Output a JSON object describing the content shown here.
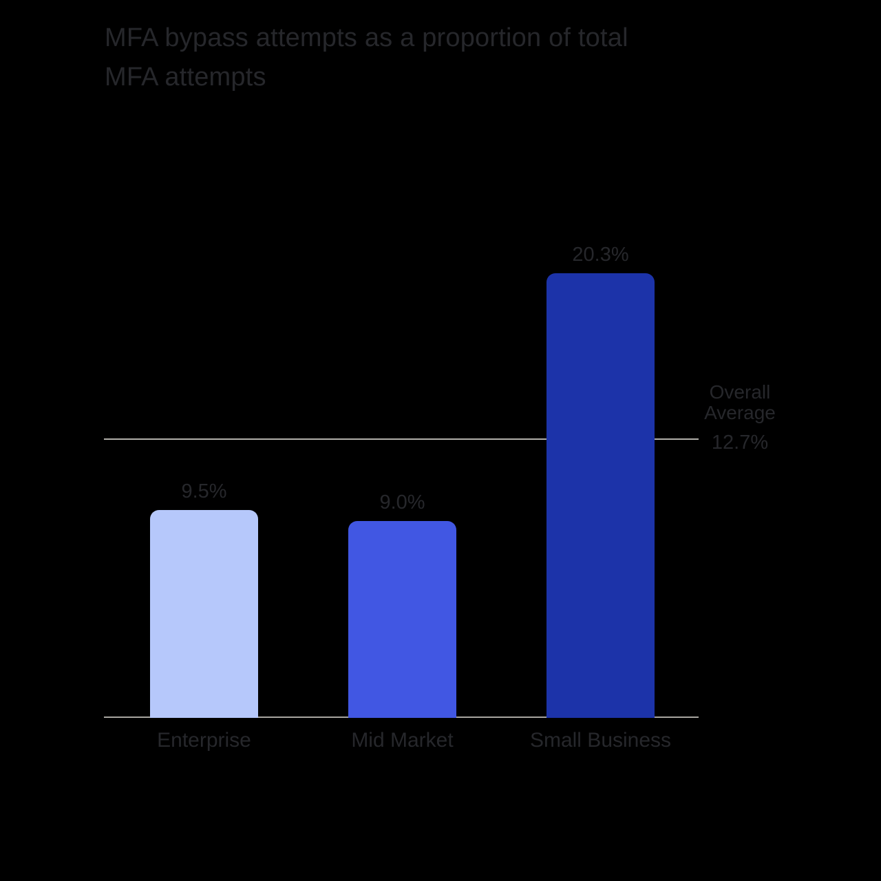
{
  "page": {
    "background_color": "#000000",
    "text_color": "#26272b"
  },
  "chart_data": {
    "type": "bar",
    "title": "MFA bypass attempts as a proportion of total MFA attempts",
    "title_lines": [
      "MFA bypass attempts as a proportion of total",
      "MFA attempts"
    ],
    "unit": "%",
    "categories": [
      "Enterprise",
      "Mid Market",
      "Small Business"
    ],
    "values": [
      9.5,
      9.0,
      20.3
    ],
    "bars": [
      {
        "category": "Enterprise",
        "value": 9.5,
        "value_label": "9.5%",
        "color": "#b6c8fb"
      },
      {
        "category": "Mid Market",
        "value": 9.0,
        "value_label": "9.0%",
        "color": "#4157e3"
      },
      {
        "category": "Small Business",
        "value": 20.3,
        "value_label": "20.3%",
        "color": "#1c33a9"
      }
    ],
    "average_line": {
      "label_line1": "Overall",
      "label_line2": "Average",
      "value": 12.7,
      "value_label": "12.7%",
      "color": "#b2b0ab"
    },
    "axis_line_color": "#a8a6a1",
    "xlabel": "",
    "ylabel": "",
    "ylim": [
      0,
      26
    ],
    "grid": false,
    "legend": false
  }
}
